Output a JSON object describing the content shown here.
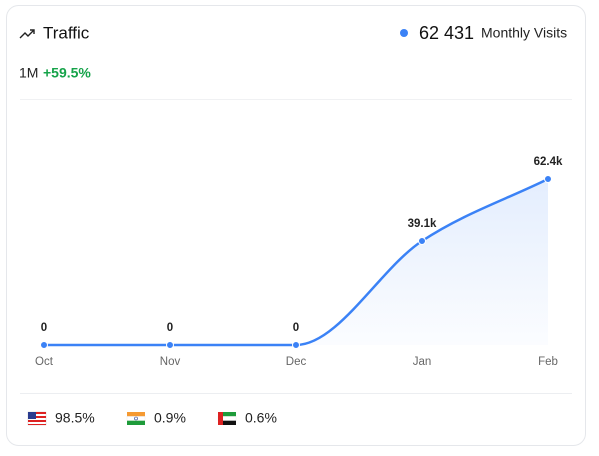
{
  "header": {
    "title": "Traffic",
    "visits": "62 431",
    "visits_label": "Monthly Visits",
    "period": "1M",
    "change": "+59.5%"
  },
  "chart_data": {
    "type": "line",
    "categories": [
      "Oct",
      "Nov",
      "Dec",
      "Jan",
      "Feb"
    ],
    "values": [
      0,
      0,
      0,
      39100,
      62400
    ],
    "value_labels": [
      "0",
      "0",
      "0",
      "39.1k",
      "62.4k"
    ],
    "color": "#3b82f6"
  },
  "countries": [
    {
      "share": "98.5%"
    },
    {
      "share": "0.9%"
    },
    {
      "share": "0.6%"
    }
  ]
}
